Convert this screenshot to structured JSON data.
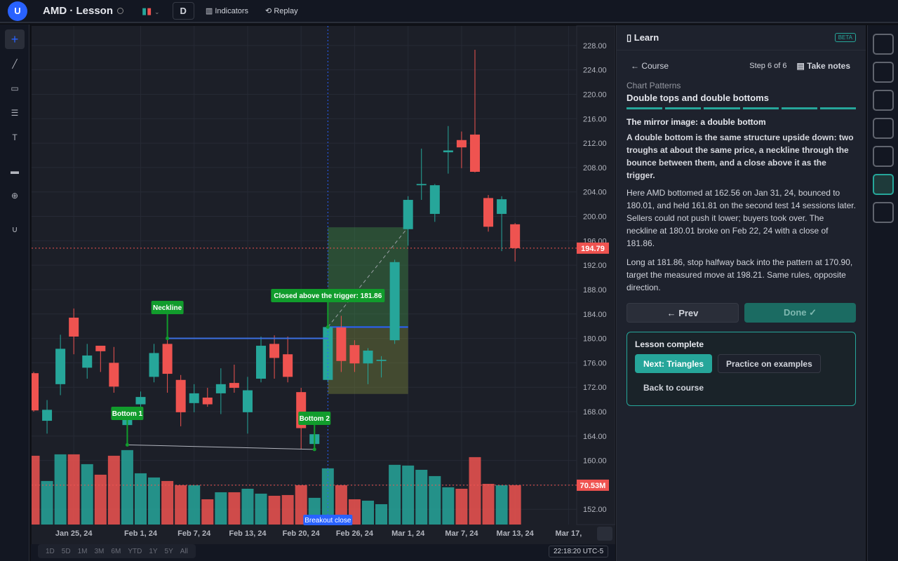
{
  "app": {
    "avatar": "U",
    "symbol": "AMD · Lesson",
    "interval": "D",
    "indicators": "Indicators",
    "replay": "Replay",
    "text_tool": "T"
  },
  "chart_data": {
    "type": "candlestick",
    "categories": [
      null,
      null,
      null,
      "Jan 25, 24",
      null,
      null,
      null,
      null,
      "Feb 1, 24",
      null,
      null,
      null,
      "Feb 7, 24",
      null,
      null,
      null,
      "Feb 13, 24",
      null,
      null,
      null,
      "Feb 20, 24",
      null,
      null,
      null,
      "Feb 26, 24",
      null,
      null,
      null,
      "Mar 1, 24",
      null,
      null,
      null,
      "Mar 7, 24",
      null,
      null,
      null,
      "Mar 13, 24",
      null,
      null,
      null,
      "Mar 17,"
    ],
    "open": [
      174.3,
      166.5,
      172.5,
      183.4,
      175.2,
      178.8,
      176.0,
      165.8,
      169.2,
      173.7,
      179.1,
      173.2,
      169.4,
      170.3,
      171.0,
      172.7,
      167.9,
      173.4,
      179.1,
      177.4,
      171.2,
      162.7,
      173.2,
      181.8,
      178.9,
      175.9,
      176.3,
      179.7,
      197.9,
      205.1,
      200.4,
      210.5,
      212.5,
      213.4,
      203.0,
      200.4,
      198.7,
      null,
      null,
      null,
      null
    ],
    "high": [
      174.5,
      169.9,
      180.6,
      184.9,
      179.1,
      178.8,
      178.6,
      168.2,
      171.3,
      179.1,
      180.01,
      174.0,
      172.5,
      171.9,
      175.1,
      175.7,
      173.7,
      180.3,
      180.5,
      180.3,
      171.9,
      165.3,
      182.4,
      183.7,
      179.7,
      178.4,
      177.1,
      192.9,
      203.3,
      211.1,
      205.3,
      214.8,
      213.9,
      227.3,
      203.5,
      203.3,
      198.9,
      null,
      null,
      null,
      null
    ],
    "low": [
      168.0,
      164.4,
      170.7,
      177.4,
      173.4,
      174.5,
      171.1,
      162.56,
      168.4,
      172.8,
      171.1,
      165.6,
      167.9,
      168.8,
      167.6,
      171.1,
      164.4,
      172.8,
      173.4,
      172.8,
      161.9,
      161.81,
      172.8,
      174.5,
      174.5,
      172.5,
      173.6,
      179.1,
      195.2,
      202.7,
      199.1,
      207.0,
      207.9,
      207.2,
      197.5,
      194.3,
      192.6,
      null,
      null,
      null,
      null
    ],
    "close": [
      168.2,
      168.3,
      178.3,
      180.3,
      177.2,
      177.9,
      172.1,
      167.3,
      170.4,
      177.6,
      174.2,
      167.9,
      171.0,
      169.2,
      172.5,
      171.9,
      171.5,
      178.8,
      176.8,
      173.7,
      165.3,
      164.3,
      181.86,
      176.3,
      175.9,
      178.0,
      176.5,
      192.5,
      202.7,
      205.3,
      205.1,
      210.8,
      211.3,
      207.3,
      198.3,
      202.8,
      194.79,
      null,
      null,
      null,
      null
    ],
    "volume": [
      123.4,
      78.1,
      125.9,
      125.9,
      108.3,
      89.4,
      123.4,
      133.5,
      91.9,
      84.4,
      78.1,
      70.5,
      70.5,
      45.3,
      57.9,
      57.9,
      64.2,
      55.4,
      51.6,
      52.9,
      70.5,
      47.9,
      100.8,
      70.5,
      45.3,
      42.8,
      36.5,
      107.1,
      105.8,
      98.2,
      86.9,
      66.8,
      64.2,
      120.9,
      73.0,
      70.5,
      70.53,
      null,
      null,
      null,
      null
    ],
    "volume_label": "70.53M",
    "up_color": "#26a69a",
    "down_color": "#ef5350",
    "ylim": [
      149.5,
      231.2
    ],
    "vlim": [
      0,
      200
    ],
    "yticks": [
      {
        "value": 152,
        "label": "152.00"
      },
      {
        "value": 156,
        "label": "156.00"
      },
      {
        "value": 160,
        "label": "160.00"
      },
      {
        "value": 164,
        "label": "164.00"
      },
      {
        "value": 168,
        "label": "168.00"
      },
      {
        "value": 172,
        "label": "172.00"
      },
      {
        "value": 176,
        "label": "176.00"
      },
      {
        "value": 180,
        "label": "180.00"
      },
      {
        "value": 184,
        "label": "184.00"
      },
      {
        "value": 188,
        "label": "188.00"
      },
      {
        "value": 192,
        "label": "192.00"
      },
      {
        "value": 196,
        "label": "196.00"
      },
      {
        "value": 200,
        "label": "200.00"
      },
      {
        "value": 204,
        "label": "204.00"
      },
      {
        "value": 208,
        "label": "208.00"
      },
      {
        "value": 212,
        "label": "212.00"
      },
      {
        "value": 216,
        "label": "216.00"
      },
      {
        "value": 220,
        "label": "220.00"
      },
      {
        "value": 224,
        "label": "224.00"
      },
      {
        "value": 228,
        "label": "228.00"
      }
    ],
    "grid": true,
    "annotations": {
      "neckline": {
        "label": "Neckline",
        "value": 180.01
      },
      "bottom1": {
        "label": "Bottom 1",
        "value": 162.56
      },
      "bottom2": {
        "label": "Bottom 2",
        "value": 161.81
      },
      "trigger": {
        "label": "Closed above the trigger: 181.86",
        "value": 181.86
      },
      "breakout": "Breakout close"
    },
    "position": {
      "entry": 181.86,
      "stop": 170.9,
      "target": 198.21
    }
  },
  "timeframes": [
    "1D",
    "5D",
    "1M",
    "3M",
    "6M",
    "YTD",
    "1Y",
    "5Y",
    "All"
  ],
  "clock": "22:18:20 UTC-5",
  "lesson": {
    "title": "Learn",
    "badge": "BETA",
    "back": "← Course",
    "step": "Step 6 of 6",
    "notes": "Take notes",
    "category": "Chart Patterns",
    "name": "Double tops and double bottoms",
    "heading": "The mirror image: a double bottom",
    "lead": "A double bottom is the same structure upside down: two troughs at about the same price, a neckline through the bounce between them, and a close above it as the trigger.",
    "paragraphs": [
      "Here AMD bottomed at 162.56 on Jan 31, 24, bounced to 180.01, and held 161.81 on the second test 14 sessions later. Sellers could not push it lower; buyers took over. The neckline at 180.01 broke on Feb 22, 24 with a close of 181.86.",
      "Long at 181.86, stop halfway back into the pattern at 170.90, target the measured move at 198.21. Same rules, opposite direction."
    ],
    "prev": "← Prev",
    "done": "Done ✓",
    "complete": {
      "title": "Lesson complete",
      "next": "Next: Triangles",
      "practice": "Practice on examples",
      "back": "Back to course"
    }
  }
}
